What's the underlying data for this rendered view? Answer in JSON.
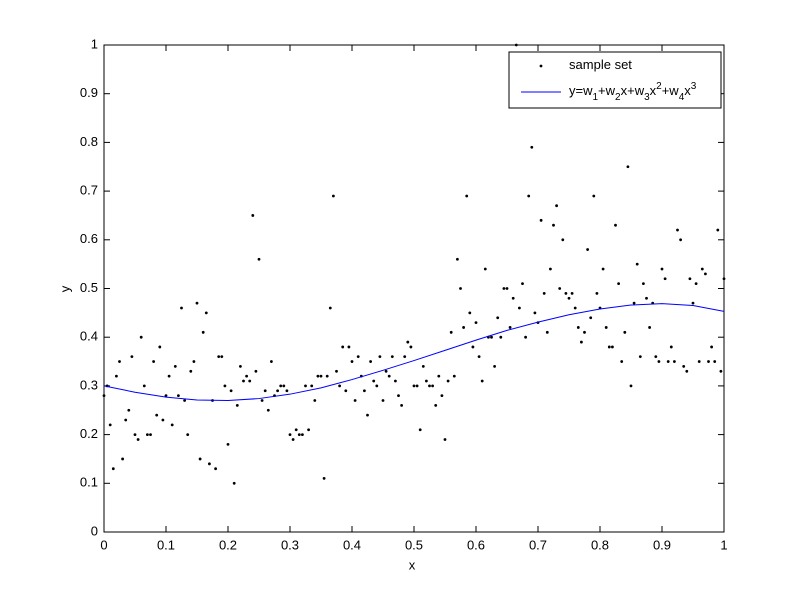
{
  "chart_data": {
    "type": "scatter",
    "xlabel": "x",
    "ylabel": "y",
    "xlim": [
      0,
      1
    ],
    "ylim": [
      0,
      1
    ],
    "xticks": [
      0,
      0.1,
      0.2,
      0.3,
      0.4,
      0.5,
      0.6,
      0.7,
      0.8,
      0.9,
      1
    ],
    "yticks": [
      0,
      0.1,
      0.2,
      0.3,
      0.4,
      0.5,
      0.6,
      0.7,
      0.8,
      0.9,
      1
    ],
    "legend": "northeast",
    "series": [
      {
        "name": "sample set",
        "type": "scatter",
        "color": "#000000",
        "x": [
          0,
          0.005,
          0.01,
          0.015,
          0.02,
          0.025,
          0.03,
          0.035,
          0.04,
          0.045,
          0.05,
          0.055,
          0.06,
          0.065,
          0.07,
          0.075,
          0.08,
          0.085,
          0.09,
          0.095,
          0.1,
          0.105,
          0.11,
          0.115,
          0.12,
          0.125,
          0.13,
          0.135,
          0.14,
          0.145,
          0.15,
          0.155,
          0.16,
          0.165,
          0.17,
          0.175,
          0.18,
          0.185,
          0.19,
          0.195,
          0.2,
          0.205,
          0.21,
          0.215,
          0.22,
          0.225,
          0.23,
          0.235,
          0.24,
          0.245,
          0.25,
          0.255,
          0.26,
          0.265,
          0.27,
          0.275,
          0.28,
          0.285,
          0.29,
          0.295,
          0.3,
          0.305,
          0.31,
          0.315,
          0.32,
          0.325,
          0.33,
          0.335,
          0.34,
          0.345,
          0.35,
          0.355,
          0.36,
          0.365,
          0.37,
          0.375,
          0.38,
          0.385,
          0.39,
          0.395,
          0.4,
          0.405,
          0.41,
          0.415,
          0.42,
          0.425,
          0.43,
          0.435,
          0.44,
          0.445,
          0.45,
          0.455,
          0.46,
          0.465,
          0.47,
          0.475,
          0.48,
          0.485,
          0.49,
          0.495,
          0.5,
          0.505,
          0.51,
          0.515,
          0.52,
          0.525,
          0.53,
          0.535,
          0.54,
          0.545,
          0.55,
          0.555,
          0.56,
          0.565,
          0.57,
          0.575,
          0.58,
          0.585,
          0.59,
          0.595,
          0.6,
          0.605,
          0.61,
          0.615,
          0.62,
          0.625,
          0.63,
          0.635,
          0.64,
          0.645,
          0.65,
          0.655,
          0.66,
          0.665,
          0.67,
          0.675,
          0.68,
          0.685,
          0.69,
          0.695,
          0.7,
          0.705,
          0.71,
          0.715,
          0.72,
          0.725,
          0.73,
          0.735,
          0.74,
          0.745,
          0.75,
          0.755,
          0.76,
          0.765,
          0.77,
          0.775,
          0.78,
          0.785,
          0.79,
          0.795,
          0.8,
          0.805,
          0.81,
          0.815,
          0.82,
          0.825,
          0.83,
          0.835,
          0.84,
          0.845,
          0.85,
          0.855,
          0.86,
          0.865,
          0.87,
          0.875,
          0.88,
          0.885,
          0.89,
          0.895,
          0.9,
          0.905,
          0.91,
          0.915,
          0.92,
          0.925,
          0.93,
          0.935,
          0.94,
          0.945,
          0.95,
          0.955,
          0.96,
          0.965,
          0.97,
          0.975,
          0.98,
          0.985,
          0.99,
          0.995,
          1
        ],
        "values": [
          0.28,
          0.3,
          0.22,
          0.13,
          0.32,
          0.35,
          0.15,
          0.23,
          0.25,
          0.36,
          0.2,
          0.19,
          0.4,
          0.3,
          0.2,
          0.2,
          0.35,
          0.24,
          0.38,
          0.23,
          0.28,
          0.32,
          0.22,
          0.34,
          0.28,
          0.46,
          0.27,
          0.2,
          0.33,
          0.35,
          0.47,
          0.15,
          0.41,
          0.45,
          0.14,
          0.27,
          0.13,
          0.36,
          0.36,
          0.3,
          0.18,
          0.29,
          0.1,
          0.26,
          0.34,
          0.31,
          0.32,
          0.31,
          0.65,
          0.33,
          0.56,
          0.27,
          0.29,
          0.25,
          0.35,
          0.28,
          0.29,
          0.3,
          0.3,
          0.29,
          0.2,
          0.19,
          0.21,
          0.2,
          0.2,
          0.3,
          0.21,
          0.3,
          0.27,
          0.32,
          0.32,
          0.11,
          0.32,
          0.46,
          0.69,
          0.33,
          0.3,
          0.38,
          0.29,
          0.38,
          0.35,
          0.27,
          0.36,
          0.32,
          0.29,
          0.24,
          0.35,
          0.31,
          0.3,
          0.36,
          0.27,
          0.33,
          0.32,
          0.36,
          0.31,
          0.28,
          0.26,
          0.36,
          0.39,
          0.38,
          0.3,
          0.3,
          0.21,
          0.34,
          0.31,
          0.3,
          0.3,
          0.26,
          0.32,
          0.28,
          0.19,
          0.31,
          0.41,
          0.32,
          0.56,
          0.5,
          0.42,
          0.69,
          0.45,
          0.38,
          0.43,
          0.36,
          0.31,
          0.54,
          0.4,
          0.4,
          0.34,
          0.44,
          0.4,
          0.5,
          0.5,
          0.42,
          0.48,
          1.0,
          0.46,
          0.51,
          0.4,
          0.69,
          0.79,
          0.45,
          0.43,
          0.64,
          0.49,
          0.41,
          0.54,
          0.63,
          0.67,
          0.5,
          0.6,
          0.49,
          0.48,
          0.49,
          0.46,
          0.42,
          0.39,
          0.41,
          0.58,
          0.44,
          0.69,
          0.49,
          0.46,
          0.54,
          0.42,
          0.38,
          0.38,
          0.63,
          0.51,
          0.35,
          0.41,
          0.75,
          0.3,
          0.47,
          0.55,
          0.36,
          0.51,
          0.48,
          0.42,
          0.47,
          0.36,
          0.35,
          0.54,
          0.52,
          0.35,
          0.38,
          0.35,
          0.62,
          0.6,
          0.34,
          0.33,
          0.52,
          0.47,
          0.51,
          0.35,
          0.54,
          0.53,
          0.35,
          0.38,
          0.35,
          0.62,
          0.33,
          0.52
        ]
      },
      {
        "name": "y=w1+w2x+w3x2+w4x3",
        "type": "line",
        "color": "#0000ff",
        "x": [
          0,
          0.05,
          0.1,
          0.15,
          0.2,
          0.25,
          0.3,
          0.35,
          0.4,
          0.45,
          0.5,
          0.55,
          0.6,
          0.65,
          0.7,
          0.75,
          0.8,
          0.85,
          0.9,
          0.95,
          1
        ],
        "values": [
          0.3,
          0.287,
          0.277,
          0.271,
          0.27,
          0.274,
          0.283,
          0.296,
          0.313,
          0.332,
          0.352,
          0.373,
          0.394,
          0.414,
          0.431,
          0.446,
          0.458,
          0.466,
          0.469,
          0.465,
          0.453
        ]
      }
    ]
  }
}
